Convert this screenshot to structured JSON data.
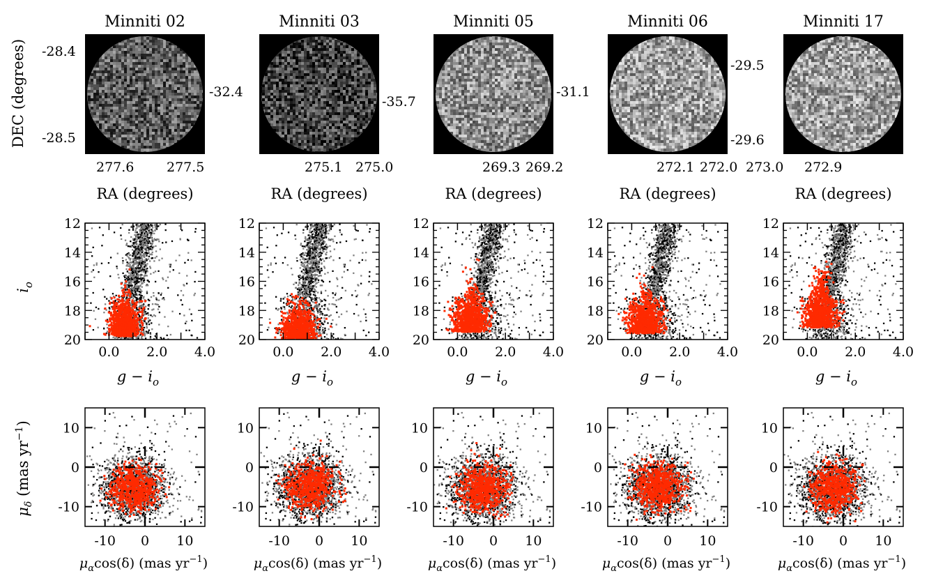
{
  "figure": {
    "background": "#ffffff",
    "colors": {
      "field_stars": "#000000",
      "field_stars_light": "#7f7f7f",
      "members": "#ff2a00"
    }
  },
  "chart_data": [
    {
      "type": "heatmap",
      "row": "sky",
      "title": "Minniti 02",
      "xlabel": "RA (degrees)",
      "ylabel": "DEC (degrees)",
      "xticks": [
        "277.6",
        "277.5"
      ],
      "yticks": [
        "-28.4",
        "-28.5"
      ],
      "brightness": 0.46
    },
    {
      "type": "heatmap",
      "row": "sky",
      "title": "Minniti 03",
      "xlabel": "RA (degrees)",
      "ylabel": "",
      "xticks": [
        "275.1",
        "275.0"
      ],
      "yticks": [
        "-32.4"
      ],
      "brightness": 0.33
    },
    {
      "type": "heatmap",
      "row": "sky",
      "title": "Minniti 05",
      "xlabel": "RA (degrees)",
      "ylabel": "",
      "xticks": [
        "269.3",
        "269.2"
      ],
      "yticks": [
        "-35.7"
      ],
      "brightness": 0.72
    },
    {
      "type": "heatmap",
      "row": "sky",
      "title": "Minniti 06",
      "xlabel": "RA (degrees)",
      "ylabel": "",
      "xticks": [
        "272.1",
        "272.0"
      ],
      "yticks": [
        "-31.1"
      ],
      "brightness": 0.8
    },
    {
      "type": "heatmap",
      "row": "sky",
      "title": "Minniti 17",
      "xlabel": "RA (degrees)",
      "ylabel": "",
      "xticks": [
        "273.0",
        "272.9"
      ],
      "yticks": [
        "-29.5",
        "-29.6"
      ],
      "brightness": 0.8
    },
    {
      "type": "scatter",
      "row": "cmd",
      "xlabel": "g − i",
      "xlabel_sub": "o",
      "ylabel": "i",
      "ylabel_sub": "o",
      "xlim": [
        -1,
        4
      ],
      "ylim": [
        20,
        12
      ],
      "xticks": [
        "0.0",
        "2.0",
        "4.0"
      ],
      "yticks": [
        "12",
        "14",
        "16",
        "18",
        "20"
      ],
      "members": {
        "x_center": 0.6,
        "x_spread": 0.3,
        "y_center": 18.8,
        "y_spread": 1.2
      },
      "field": {
        "x_center": 0.9,
        "x_spread": 0.45,
        "y_center": 17.8,
        "y_spread": 1.6
      }
    },
    {
      "type": "scatter",
      "row": "cmd",
      "xlabel": "g − i",
      "xlabel_sub": "o",
      "ylabel": "",
      "xlim": [
        -1,
        4
      ],
      "ylim": [
        20,
        12
      ],
      "xticks": [
        "0.0",
        "2.0",
        "4.0"
      ],
      "yticks": [
        "12",
        "14",
        "16",
        "18",
        "20"
      ],
      "members": {
        "x_center": 0.6,
        "x_spread": 0.35,
        "y_center": 19.0,
        "y_spread": 1.0
      },
      "field": {
        "x_center": 0.9,
        "x_spread": 0.5,
        "y_center": 17.8,
        "y_spread": 1.7
      }
    },
    {
      "type": "scatter",
      "row": "cmd",
      "xlabel": "g − i",
      "xlabel_sub": "o",
      "ylabel": "",
      "xlim": [
        -1,
        4
      ],
      "ylim": [
        20,
        12
      ],
      "xticks": [
        "0.0",
        "2.0",
        "4.0"
      ],
      "yticks": [
        "12",
        "14",
        "16",
        "18",
        "20"
      ],
      "members": {
        "x_center": 0.5,
        "x_spread": 0.35,
        "y_center": 18.5,
        "y_spread": 1.3
      },
      "field": {
        "x_center": 0.9,
        "x_spread": 0.55,
        "y_center": 17.3,
        "y_spread": 1.9
      }
    },
    {
      "type": "scatter",
      "row": "cmd",
      "xlabel": "g − i",
      "xlabel_sub": "o",
      "ylabel": "",
      "xlim": [
        -1,
        4
      ],
      "ylim": [
        20,
        12
      ],
      "xticks": [
        "0.0",
        "2.0",
        "4.0"
      ],
      "yticks": [
        "12",
        "14",
        "16",
        "18",
        "20"
      ],
      "members": {
        "x_center": 0.5,
        "x_spread": 0.35,
        "y_center": 18.6,
        "y_spread": 1.2
      },
      "field": {
        "x_center": 0.9,
        "x_spread": 0.55,
        "y_center": 17.2,
        "y_spread": 2.0
      }
    },
    {
      "type": "scatter",
      "row": "cmd",
      "xlabel": "g − i",
      "xlabel_sub": "o",
      "ylabel": "",
      "xlim": [
        -1,
        4
      ],
      "ylim": [
        20,
        12
      ],
      "xticks": [
        "0.0",
        "2.0",
        "4.0"
      ],
      "yticks": [
        "12",
        "14",
        "16",
        "18",
        "20"
      ],
      "members": {
        "x_center": 0.5,
        "x_spread": 0.35,
        "y_center": 18.2,
        "y_spread": 1.5
      },
      "field": {
        "x_center": 0.9,
        "x_spread": 0.5,
        "y_center": 17.2,
        "y_spread": 2.0
      }
    },
    {
      "type": "scatter",
      "row": "pm",
      "xlabel": "cos(δ) (mas yr",
      "xlabel_greek": "μ",
      "xlabel_sub": "α",
      "xlabel_sup": "−1",
      "xlabel_tail": ")",
      "ylabel": " (mas yr",
      "ylabel_greek": "μ",
      "ylabel_sub": "δ",
      "ylabel_sup": "−1",
      "ylabel_tail": ")",
      "xlim": [
        -15,
        15
      ],
      "ylim": [
        -15,
        15
      ],
      "xticks": [
        "-10",
        "0",
        "10"
      ],
      "yticks": [
        "10",
        "0",
        "-10"
      ],
      "members": {
        "x_center": -3,
        "y_center": -5,
        "spread": 2.8
      },
      "field": {
        "x_center": -3,
        "y_center": -5,
        "spread": 4.0
      }
    },
    {
      "type": "scatter",
      "row": "pm",
      "xlabel": "cos(δ) (mas yr",
      "xlabel_greek": "μ",
      "xlabel_sub": "α",
      "xlabel_sup": "−1",
      "xlabel_tail": ")",
      "ylabel": "",
      "xlim": [
        -15,
        15
      ],
      "ylim": [
        -15,
        15
      ],
      "xticks": [
        "-10",
        "0",
        "10"
      ],
      "yticks": [
        "10",
        "0",
        "-10"
      ],
      "members": {
        "x_center": -2.5,
        "y_center": -4.5,
        "spread": 3.0
      },
      "field": {
        "x_center": -2.5,
        "y_center": -4.5,
        "spread": 4.2
      }
    },
    {
      "type": "scatter",
      "row": "pm",
      "xlabel": "cos(δ) (mas yr",
      "xlabel_greek": "μ",
      "xlabel_sub": "α",
      "xlabel_sup": "−1",
      "xlabel_tail": ")",
      "ylabel": "",
      "xlim": [
        -15,
        15
      ],
      "ylim": [
        -15,
        15
      ],
      "xticks": [
        "-10",
        "0",
        "10"
      ],
      "yticks": [
        "10",
        "0",
        "-10"
      ],
      "members": {
        "x_center": -2.8,
        "y_center": -5,
        "spread": 3.0
      },
      "field": {
        "x_center": -2.8,
        "y_center": -5,
        "spread": 4.3
      }
    },
    {
      "type": "scatter",
      "row": "pm",
      "xlabel": "cos(δ) (mas yr",
      "xlabel_greek": "μ",
      "xlabel_sub": "α",
      "xlabel_sup": "−1",
      "xlabel_tail": ")",
      "ylabel": "",
      "xlim": [
        -15,
        15
      ],
      "ylim": [
        -15,
        15
      ],
      "xticks": [
        "-10",
        "0",
        "10"
      ],
      "yticks": [
        "10",
        "0",
        "-10"
      ],
      "members": {
        "x_center": -2.5,
        "y_center": -4.8,
        "spread": 2.9
      },
      "field": {
        "x_center": -2.5,
        "y_center": -4.8,
        "spread": 4.2
      }
    },
    {
      "type": "scatter",
      "row": "pm",
      "xlabel": "cos(δ) (mas yr",
      "xlabel_greek": "μ",
      "xlabel_sub": "α",
      "xlabel_sup": "−1",
      "xlabel_tail": ")",
      "ylabel": "",
      "xlim": [
        -15,
        15
      ],
      "ylim": [
        -15,
        15
      ],
      "xticks": [
        "-10",
        "0",
        "10"
      ],
      "yticks": [
        "10",
        "0",
        "-10"
      ],
      "members": {
        "x_center": -2.7,
        "y_center": -5,
        "spread": 2.9
      },
      "field": {
        "x_center": -2.7,
        "y_center": -5,
        "spread": 4.2
      }
    }
  ]
}
